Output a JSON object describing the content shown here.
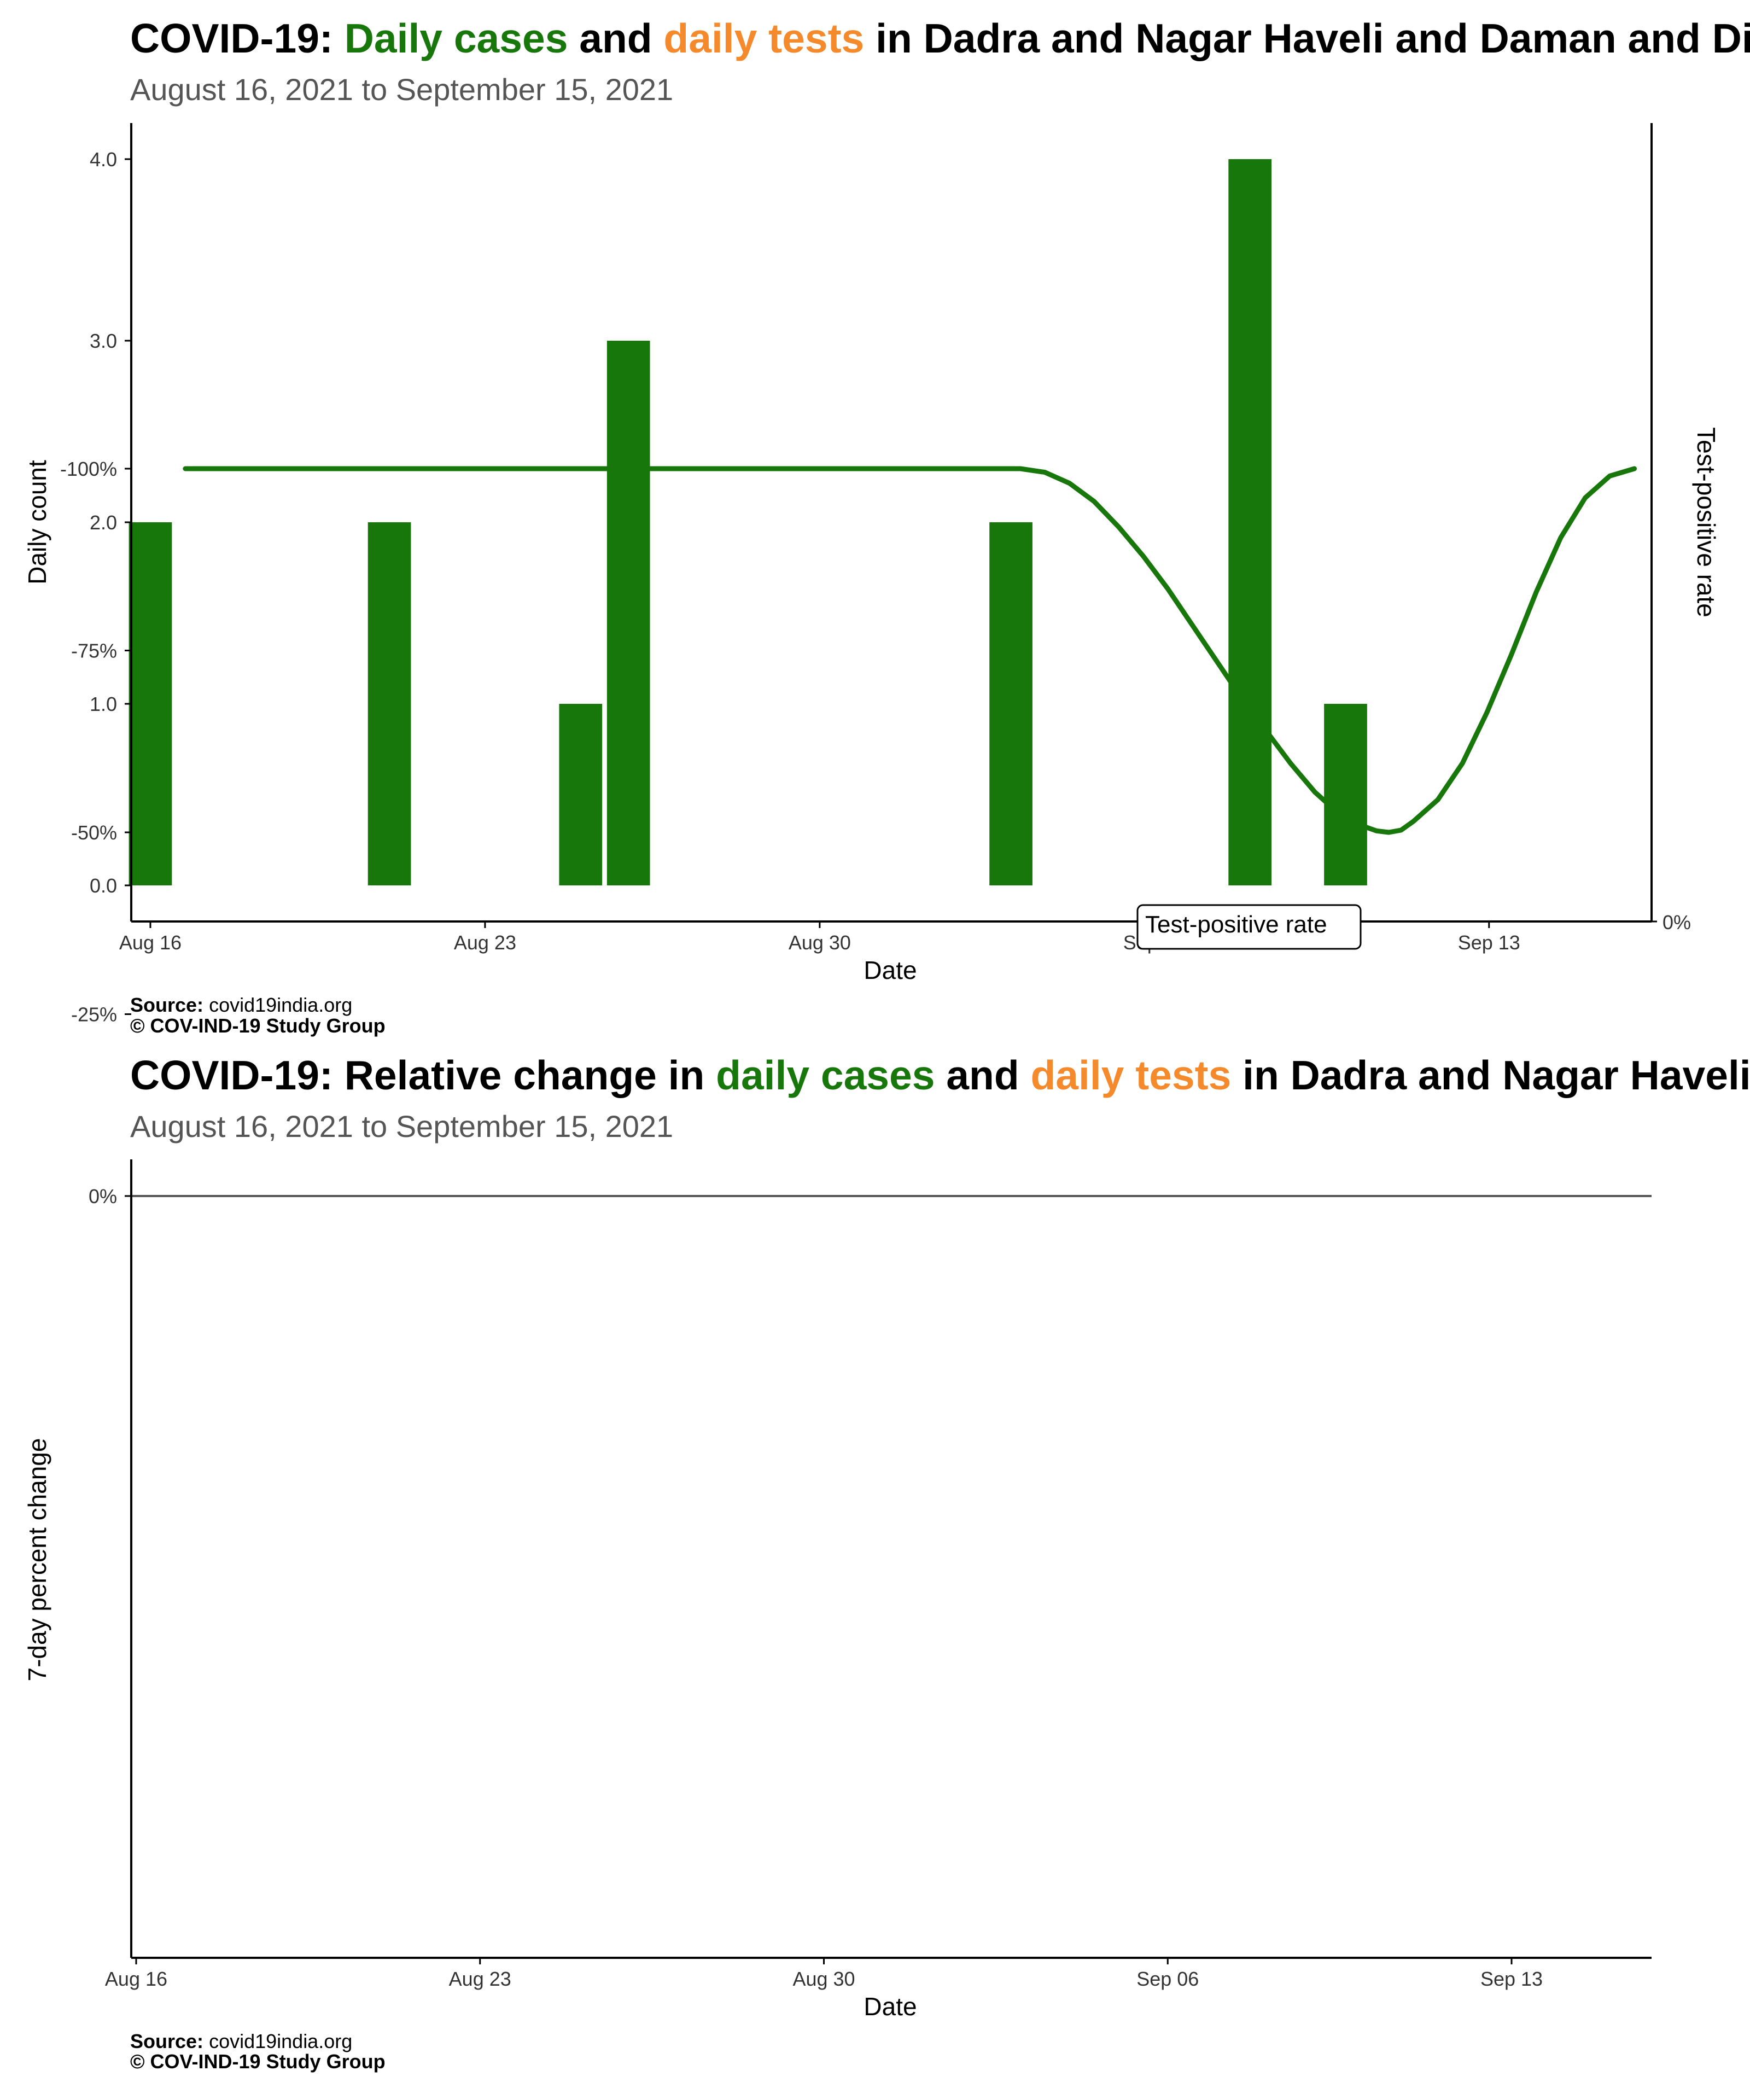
{
  "colors": {
    "cases": "#17770a",
    "tests": "#f58a2c",
    "subtitle": "#555555",
    "axis": "#000000",
    "zero_line": "#555555"
  },
  "chart_data": [
    {
      "type": "bar",
      "title_parts": [
        {
          "text": "COVID-19: ",
          "color": "#000000"
        },
        {
          "text": "Daily cases",
          "color": "#17770a"
        },
        {
          "text": " and ",
          "color": "#000000"
        },
        {
          "text": "daily tests",
          "color": "#f58a2c"
        },
        {
          "text": " in Dadra and Nagar Haveli and Daman and Diu",
          "color": "#000000"
        }
      ],
      "subtitle": "August 16, 2021 to September 15, 2021",
      "xlabel": "Date",
      "ylabel": "Daily count",
      "y2label": "Test-positive rate",
      "y2_ticks": [
        "0%"
      ],
      "legend_label": "Test-positive rate",
      "x_ticks": [
        "Aug 16",
        "Aug 23",
        "Aug 30",
        "Sep 06",
        "Sep 13"
      ],
      "y_ticks": [
        "0.0",
        "1.0",
        "2.0",
        "3.0",
        "4.0"
      ],
      "ylim": [
        0,
        4
      ],
      "series": [
        {
          "name": "Daily cases",
          "points": [
            {
              "x": "2021-08-16",
              "y": 2
            },
            {
              "x": "2021-08-21",
              "y": 2
            },
            {
              "x": "2021-08-25",
              "y": 1
            },
            {
              "x": "2021-08-26",
              "y": 3
            },
            {
              "x": "2021-09-03",
              "y": 2
            },
            {
              "x": "2021-09-08",
              "y": 4
            },
            {
              "x": "2021-09-10",
              "y": 1
            }
          ]
        }
      ],
      "source_label": "Source:",
      "source": "covid19india.org",
      "copyright": "© COV-IND-19 Study Group"
    },
    {
      "type": "line",
      "title_parts": [
        {
          "text": "COVID-19: Relative change in ",
          "color": "#000000"
        },
        {
          "text": "daily cases",
          "color": "#17770a"
        },
        {
          "text": " and ",
          "color": "#000000"
        },
        {
          "text": "daily tests",
          "color": "#f58a2c"
        },
        {
          "text": " in Dadra and Nagar Haveli and Daman and Diu",
          "color": "#000000"
        }
      ],
      "subtitle": "August 16, 2021 to September 15, 2021",
      "xlabel": "Date",
      "ylabel": "7-day percent change",
      "x_ticks": [
        "Aug 16",
        "Aug 23",
        "Aug 30",
        "Sep 06",
        "Sep 13"
      ],
      "y_ticks": [
        "-100%",
        "-75%",
        "-50%",
        "-25%",
        "0%"
      ],
      "ylim": [
        -100,
        0
      ],
      "series": [
        {
          "name": "Daily cases",
          "points": [
            {
              "x": "2021-08-17",
              "y": -100
            },
            {
              "x": "2021-09-03",
              "y": -100
            },
            {
              "x": "2021-09-03 12:00",
              "y": -99.5
            },
            {
              "x": "2021-09-04",
              "y": -98
            },
            {
              "x": "2021-09-04 12:00",
              "y": -95.5
            },
            {
              "x": "2021-09-05",
              "y": -92
            },
            {
              "x": "2021-09-05 12:00",
              "y": -88
            },
            {
              "x": "2021-09-06",
              "y": -83.5
            },
            {
              "x": "2021-09-06 12:00",
              "y": -78.5
            },
            {
              "x": "2021-09-07",
              "y": -73.5
            },
            {
              "x": "2021-09-07 12:00",
              "y": -68.5
            },
            {
              "x": "2021-09-08",
              "y": -64
            },
            {
              "x": "2021-09-08 12:00",
              "y": -59.5
            },
            {
              "x": "2021-09-09",
              "y": -55.5
            },
            {
              "x": "2021-09-09 12:00",
              "y": -52.5
            },
            {
              "x": "2021-09-10",
              "y": -50.8
            },
            {
              "x": "2021-09-10 06:00",
              "y": -50.2
            },
            {
              "x": "2021-09-10 12:00",
              "y": -50
            },
            {
              "x": "2021-09-10 18:00",
              "y": -50.3
            },
            {
              "x": "2021-09-11",
              "y": -51.5
            },
            {
              "x": "2021-09-11 12:00",
              "y": -54.5
            },
            {
              "x": "2021-09-12",
              "y": -59.5
            },
            {
              "x": "2021-09-12 12:00",
              "y": -66.5
            },
            {
              "x": "2021-09-13",
              "y": -74.5
            },
            {
              "x": "2021-09-13 12:00",
              "y": -83
            },
            {
              "x": "2021-09-14",
              "y": -90.5
            },
            {
              "x": "2021-09-14 12:00",
              "y": -96
            },
            {
              "x": "2021-09-15",
              "y": -99
            },
            {
              "x": "2021-09-15 12:00",
              "y": -100
            }
          ]
        }
      ],
      "source_label": "Source:",
      "source": "covid19india.org",
      "copyright": "© COV-IND-19 Study Group"
    }
  ]
}
